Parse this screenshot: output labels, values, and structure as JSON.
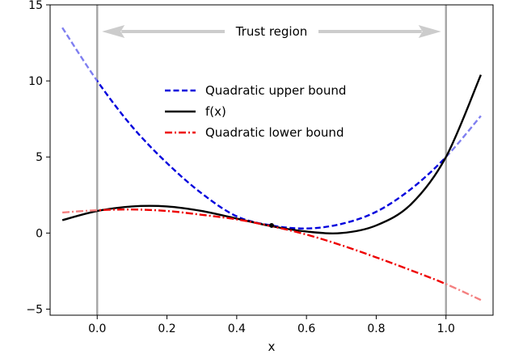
{
  "chart_data": {
    "type": "line",
    "title": "",
    "xlabel": "x",
    "ylabel": "",
    "xlim": [
      -0.135,
      1.135
    ],
    "ylim": [
      -5.4,
      15.0
    ],
    "x_ticks": [
      0.0,
      0.2,
      0.4,
      0.6,
      0.8,
      1.0
    ],
    "x_tick_labels": [
      "0.0",
      "0.2",
      "0.4",
      "0.6",
      "0.8",
      "1.0"
    ],
    "y_ticks": [
      -5,
      0,
      5,
      10,
      15
    ],
    "y_tick_labels": [
      "−5",
      "0",
      "5",
      "10",
      "15"
    ],
    "grid": false,
    "legend_position": "upper-center",
    "trust_region": {
      "label": "Trust region",
      "x_start": 0.0,
      "x_end": 1.0,
      "line_color": "#a6a6a6",
      "arrow_color": "#cccccc"
    },
    "expansion_point": {
      "x": 0.5,
      "y": 0.5
    },
    "series": [
      {
        "name": "Quadratic upper bound",
        "style": "dashed",
        "color": "#0000dd",
        "outside_color": "#7f7ff0",
        "x": [
          -0.1,
          0.0,
          0.1,
          0.2,
          0.3,
          0.4,
          0.5,
          0.6,
          0.7,
          0.8,
          0.9,
          1.0,
          1.1
        ],
        "y": [
          13.5,
          10.0,
          7.0,
          4.6,
          2.6,
          1.1,
          0.5,
          0.3,
          0.6,
          1.4,
          2.9,
          5.0,
          7.7
        ]
      },
      {
        "name": "f(x)",
        "style": "solid",
        "color": "#000000",
        "outside_color": "#000000",
        "x": [
          -0.1,
          0.0,
          0.1,
          0.2,
          0.3,
          0.4,
          0.5,
          0.6,
          0.7,
          0.8,
          0.9,
          1.0,
          1.1
        ],
        "y": [
          0.85,
          1.45,
          1.75,
          1.75,
          1.45,
          0.95,
          0.45,
          0.1,
          0.0,
          0.5,
          1.9,
          5.0,
          10.4
        ]
      },
      {
        "name": "Quadratic lower bound",
        "style": "dashdot",
        "color": "#ee0000",
        "outside_color": "#f48080",
        "x": [
          -0.1,
          0.0,
          0.1,
          0.2,
          0.3,
          0.4,
          0.5,
          0.6,
          0.7,
          0.8,
          0.9,
          1.0,
          1.1
        ],
        "y": [
          1.35,
          1.5,
          1.55,
          1.45,
          1.2,
          0.9,
          0.45,
          -0.1,
          -0.8,
          -1.6,
          -2.45,
          -3.35,
          -4.4
        ]
      }
    ]
  }
}
